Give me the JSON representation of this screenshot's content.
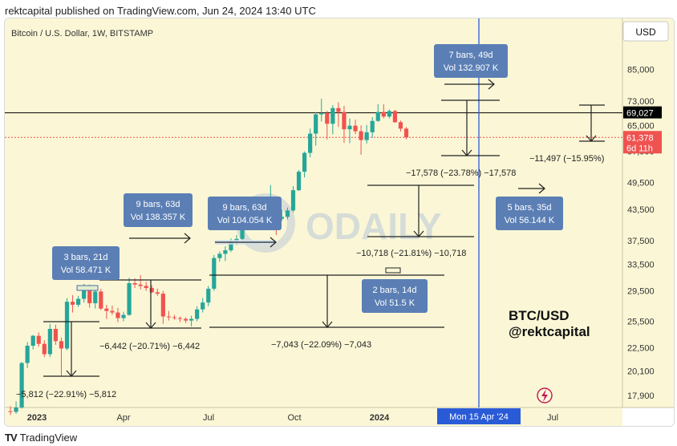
{
  "header": {
    "published": "rektcapital published on TradingView.com, Jun 24, 2024 13:40 UTC"
  },
  "footer": {
    "brand": "TradingView",
    "logo": "TV"
  },
  "colors": {
    "background": "#fbf7d6",
    "up": "#26a69a",
    "down": "#ef5350",
    "box": "#5b7fb5",
    "annotation": "#222222",
    "crosshair": "#2a5bd7"
  },
  "chart_data": {
    "type": "candlestick",
    "symbol_label": "Bitcoin / U.S. Dollar, 1W, BITSTAMP",
    "currency_button": "USD",
    "watermark": "ODAILY",
    "x_ticks": [
      "2023",
      "Apr",
      "Jul",
      "Oct",
      "2024",
      "Apr",
      "Jul"
    ],
    "y_ticks": [
      "85,000",
      "73,000",
      "65,000",
      "57,500",
      "49,500",
      "43,500",
      "37,500",
      "33,500",
      "29,500",
      "25,500",
      "22,500",
      "20,100",
      "17,900"
    ],
    "price_tags": [
      {
        "label": "69,027",
        "sub": "",
        "color": "#000000"
      },
      {
        "label": "61,378",
        "sub": "6d 11h",
        "color": "#ef5350"
      }
    ],
    "crosshair_label": "Mon 15 Apr '24",
    "overlay_text": [
      "BTC/USD",
      "@rektcapital"
    ],
    "range_boxes": [
      {
        "line1": "3 bars, 21d",
        "line2": "Vol 58.471 K"
      },
      {
        "line1": "9 bars, 63d",
        "line2": "Vol 138.357 K"
      },
      {
        "line1": "9 bars, 63d",
        "line2": "Vol 104.054 K"
      },
      {
        "line1": "2 bars, 14d",
        "line2": "Vol 51.5 K"
      },
      {
        "line1": "7 bars, 49d",
        "line2": "Vol 132.907 K"
      },
      {
        "line1": "5 bars, 35d",
        "line2": "Vol 56.144 K"
      }
    ],
    "retrace_labels": [
      "−5,812 (−22.91%) −5,812",
      "−6,442 (−20.71%) −6,442",
      "−7,043 (−22.09%) −7,043",
      "−10,718 (−21.81%) −10,718",
      "−17,578 (−23.78%) −17,578",
      "−11,497 (−15.95%)"
    ],
    "candles": [
      {
        "o": 16600,
        "h": 17000,
        "l": 16300,
        "c": 16550
      },
      {
        "o": 16550,
        "h": 17400,
        "l": 16400,
        "c": 16900
      },
      {
        "o": 16900,
        "h": 21000,
        "l": 16800,
        "c": 20900
      },
      {
        "o": 20900,
        "h": 23100,
        "l": 20400,
        "c": 22700
      },
      {
        "o": 22700,
        "h": 23900,
        "l": 22300,
        "c": 23800
      },
      {
        "o": 23800,
        "h": 24200,
        "l": 22600,
        "c": 22900
      },
      {
        "o": 22900,
        "h": 23300,
        "l": 21500,
        "c": 21800
      },
      {
        "o": 21800,
        "h": 25200,
        "l": 21500,
        "c": 24600
      },
      {
        "o": 24600,
        "h": 25100,
        "l": 22800,
        "c": 23200
      },
      {
        "o": 23200,
        "h": 23600,
        "l": 19600,
        "c": 22400
      },
      {
        "o": 22400,
        "h": 28500,
        "l": 22200,
        "c": 28000
      },
      {
        "o": 28000,
        "h": 28900,
        "l": 26600,
        "c": 27600
      },
      {
        "o": 27600,
        "h": 28800,
        "l": 27300,
        "c": 28400
      },
      {
        "o": 28400,
        "h": 30500,
        "l": 27900,
        "c": 30300
      },
      {
        "o": 30300,
        "h": 30400,
        "l": 27200,
        "c": 27800
      },
      {
        "o": 27800,
        "h": 30100,
        "l": 27100,
        "c": 29400
      },
      {
        "o": 29400,
        "h": 29800,
        "l": 26900,
        "c": 27100
      },
      {
        "o": 27100,
        "h": 27600,
        "l": 25800,
        "c": 26800
      },
      {
        "o": 26800,
        "h": 27500,
        "l": 26300,
        "c": 26600
      },
      {
        "o": 26600,
        "h": 27200,
        "l": 25400,
        "c": 25900
      },
      {
        "o": 25900,
        "h": 26700,
        "l": 25500,
        "c": 26300
      },
      {
        "o": 26300,
        "h": 31400,
        "l": 26200,
        "c": 30600
      },
      {
        "o": 30600,
        "h": 31300,
        "l": 29900,
        "c": 30400
      },
      {
        "o": 30400,
        "h": 31800,
        "l": 29700,
        "c": 30200
      },
      {
        "o": 30200,
        "h": 30800,
        "l": 29500,
        "c": 29900
      },
      {
        "o": 29900,
        "h": 30300,
        "l": 29200,
        "c": 29300
      },
      {
        "o": 29300,
        "h": 29800,
        "l": 28800,
        "c": 29100
      },
      {
        "o": 29100,
        "h": 29500,
        "l": 25200,
        "c": 26100
      },
      {
        "o": 26100,
        "h": 26800,
        "l": 25600,
        "c": 26000
      },
      {
        "o": 26000,
        "h": 26300,
        "l": 25700,
        "c": 25900
      },
      {
        "o": 25900,
        "h": 26100,
        "l": 25400,
        "c": 25800
      },
      {
        "o": 25800,
        "h": 26000,
        "l": 25300,
        "c": 25600
      },
      {
        "o": 25600,
        "h": 26200,
        "l": 24900,
        "c": 25800
      },
      {
        "o": 25800,
        "h": 27400,
        "l": 25500,
        "c": 27000
      },
      {
        "o": 27000,
        "h": 28500,
        "l": 26600,
        "c": 27900
      },
      {
        "o": 27900,
        "h": 30200,
        "l": 27400,
        "c": 29800
      },
      {
        "o": 29800,
        "h": 35000,
        "l": 29500,
        "c": 34500
      },
      {
        "o": 34500,
        "h": 35600,
        "l": 33900,
        "c": 35200
      },
      {
        "o": 35200,
        "h": 36500,
        "l": 34000,
        "c": 35800
      },
      {
        "o": 35800,
        "h": 37900,
        "l": 35500,
        "c": 37400
      },
      {
        "o": 37400,
        "h": 38500,
        "l": 36700,
        "c": 37800
      },
      {
        "o": 37800,
        "h": 41500,
        "l": 37600,
        "c": 41200
      },
      {
        "o": 41200,
        "h": 44700,
        "l": 40500,
        "c": 43800
      },
      {
        "o": 43800,
        "h": 44000,
        "l": 40600,
        "c": 42200
      },
      {
        "o": 42200,
        "h": 43800,
        "l": 41200,
        "c": 42900
      },
      {
        "o": 42900,
        "h": 44500,
        "l": 41800,
        "c": 42100
      },
      {
        "o": 42100,
        "h": 48900,
        "l": 41700,
        "c": 42600
      },
      {
        "o": 42600,
        "h": 43000,
        "l": 38500,
        "c": 41600
      },
      {
        "o": 41600,
        "h": 43500,
        "l": 41200,
        "c": 42000
      },
      {
        "o": 42000,
        "h": 43900,
        "l": 41500,
        "c": 43300
      },
      {
        "o": 43300,
        "h": 48600,
        "l": 42900,
        "c": 47700
      },
      {
        "o": 47700,
        "h": 52500,
        "l": 47500,
        "c": 52100
      },
      {
        "o": 52100,
        "h": 57400,
        "l": 50700,
        "c": 57000
      },
      {
        "o": 57000,
        "h": 64000,
        "l": 55800,
        "c": 62500
      },
      {
        "o": 62500,
        "h": 69200,
        "l": 59000,
        "c": 68500
      },
      {
        "o": 68500,
        "h": 73800,
        "l": 66200,
        "c": 68900
      },
      {
        "o": 68900,
        "h": 69700,
        "l": 60800,
        "c": 65500
      },
      {
        "o": 65500,
        "h": 71600,
        "l": 62300,
        "c": 70600
      },
      {
        "o": 70600,
        "h": 72600,
        "l": 64500,
        "c": 69300
      },
      {
        "o": 69300,
        "h": 71300,
        "l": 59800,
        "c": 63800
      },
      {
        "o": 63800,
        "h": 67200,
        "l": 59700,
        "c": 64900
      },
      {
        "o": 64900,
        "h": 66800,
        "l": 62300,
        "c": 63200
      },
      {
        "o": 63200,
        "h": 65000,
        "l": 56500,
        "c": 60600
      },
      {
        "o": 60600,
        "h": 65100,
        "l": 59600,
        "c": 62900
      },
      {
        "o": 62900,
        "h": 67600,
        "l": 61300,
        "c": 66400
      },
      {
        "o": 66400,
        "h": 71900,
        "l": 66100,
        "c": 69300
      },
      {
        "o": 69300,
        "h": 71900,
        "l": 67200,
        "c": 67800
      },
      {
        "o": 67800,
        "h": 70100,
        "l": 67200,
        "c": 69600
      },
      {
        "o": 69600,
        "h": 70000,
        "l": 65800,
        "c": 66000
      },
      {
        "o": 66000,
        "h": 66500,
        "l": 63100,
        "c": 64000
      },
      {
        "o": 64000,
        "h": 64500,
        "l": 60800,
        "c": 61378
      }
    ]
  }
}
